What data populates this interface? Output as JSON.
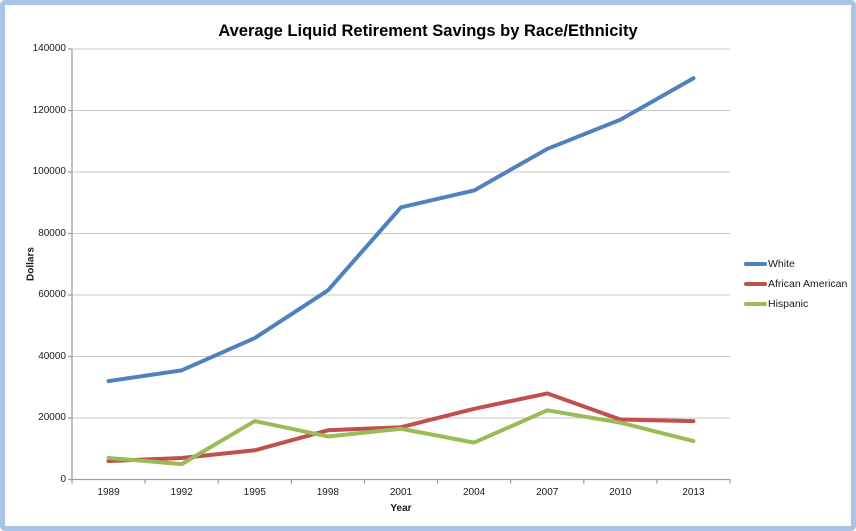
{
  "colors": {
    "frame_border": "#a9c3e8",
    "gridline": "#c7c7c7",
    "axis": "#a0a0a0",
    "text": "#1a1a1a"
  },
  "chart_data": {
    "type": "line",
    "title": "Average Liquid Retirement Savings by Race/Ethnicity",
    "xlabel": "Year",
    "ylabel": "Dollars",
    "categories": [
      "1989",
      "1992",
      "1995",
      "1998",
      "2001",
      "2004",
      "2007",
      "2010",
      "2013"
    ],
    "series": [
      {
        "name": "White",
        "color": "#4f81bd",
        "values": [
          32000,
          35500,
          46000,
          61500,
          88500,
          94000,
          107500,
          117000,
          130500
        ]
      },
      {
        "name": "African American",
        "color": "#c0504d",
        "values": [
          6000,
          7000,
          9500,
          16000,
          17000,
          23000,
          28000,
          19500,
          19000
        ]
      },
      {
        "name": "Hispanic",
        "color": "#9bbb59",
        "values": [
          7000,
          5000,
          19000,
          14000,
          16500,
          12000,
          22500,
          18500,
          12500
        ]
      }
    ],
    "ylim": [
      0,
      140000
    ],
    "yticks": [
      0,
      20000,
      40000,
      60000,
      80000,
      100000,
      120000,
      140000
    ],
    "grid": "horizontal",
    "legend_position": "right"
  }
}
